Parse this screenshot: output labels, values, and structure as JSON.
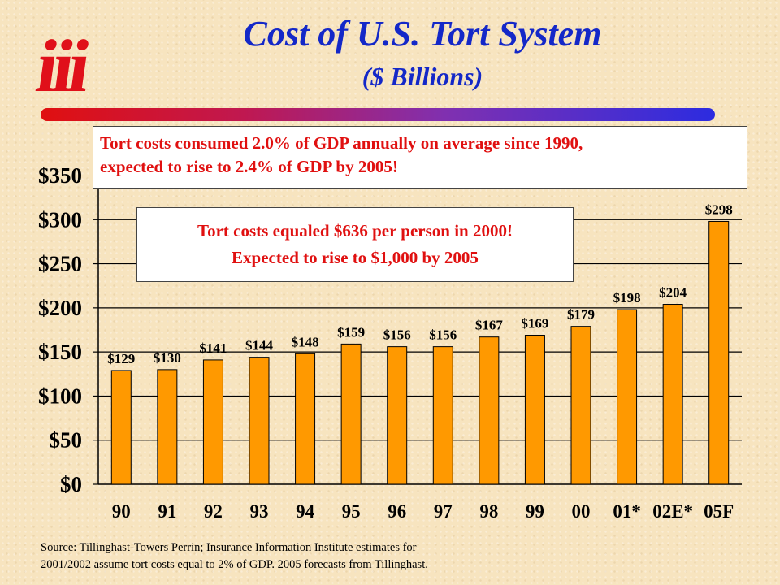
{
  "logo": {
    "text": "iii",
    "color": "#e0101a"
  },
  "header": {
    "title": "Cost of U.S. Tort System",
    "subtitle": "($ Billions)",
    "title_color": "#1428c8"
  },
  "callouts": {
    "gdp_line1": "Tort costs consumed 2.0% of GDP annually on average since 1990,",
    "gdp_line2": "expected to rise to 2.4% of GDP by 2005!",
    "per_person_line1": "Tort costs equaled $636 per person in 2000!",
    "per_person_line2": "Expected to rise to $1,000 by 2005",
    "text_color": "#e01010"
  },
  "footer": {
    "source_line1": "Source:  Tillinghast-Towers Perrin; Insurance Information Institute estimates for",
    "source_line2": "2001/2002 assume tort costs equal to 2% of GDP. 2005 forecasts from Tillinghast."
  },
  "chart_data": {
    "type": "bar",
    "title": "Cost of U.S. Tort System",
    "subtitle": "($ Billions)",
    "categories": [
      "90",
      "91",
      "92",
      "93",
      "94",
      "95",
      "96",
      "97",
      "98",
      "99",
      "00",
      "01*",
      "02E*",
      "05F"
    ],
    "values": [
      129,
      130,
      141,
      144,
      148,
      159,
      156,
      156,
      167,
      169,
      179,
      198,
      204,
      298
    ],
    "data_labels": [
      "$129",
      "$130",
      "$141",
      "$144",
      "$148",
      "$159",
      "$156",
      "$156",
      "$167",
      "$169",
      "$179",
      "$198",
      "$204",
      "$298"
    ],
    "y_ticks": [
      0,
      50,
      100,
      150,
      200,
      250,
      300,
      350
    ],
    "y_tick_labels": [
      "$0",
      "$50",
      "$100",
      "$150",
      "$200",
      "$250",
      "$300",
      "$350"
    ],
    "ylim": [
      0,
      350
    ],
    "grid": true,
    "bar_color": "#ff9900",
    "xlabel": "",
    "ylabel": ""
  }
}
